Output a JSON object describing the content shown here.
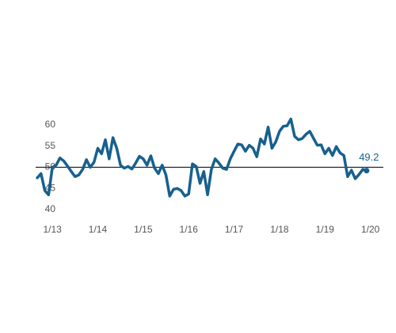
{
  "chart_data": {
    "type": "line",
    "categories": [
      null,
      null,
      null,
      null,
      "1/13",
      null,
      null,
      null,
      null,
      null,
      null,
      null,
      null,
      null,
      null,
      null,
      "1/14",
      null,
      null,
      null,
      null,
      null,
      null,
      null,
      null,
      null,
      null,
      null,
      "1/15",
      null,
      null,
      null,
      null,
      null,
      null,
      null,
      null,
      null,
      null,
      null,
      "1/16",
      null,
      null,
      null,
      null,
      null,
      null,
      null,
      null,
      null,
      null,
      null,
      "1/17",
      null,
      null,
      null,
      null,
      null,
      null,
      null,
      null,
      null,
      null,
      null,
      "1/18",
      null,
      null,
      null,
      null,
      null,
      null,
      null,
      null,
      null,
      null,
      null,
      "1/19",
      null,
      null,
      null,
      null,
      null,
      null,
      null,
      null,
      null,
      null,
      null,
      "1/20"
    ],
    "series": [
      {
        "color": "#17608e",
        "values": [
          47.5,
          48.5,
          44.5,
          43.5,
          50,
          50.5,
          52.2,
          51.5,
          50.3,
          49,
          47.8,
          48.2,
          49.5,
          51.8,
          50,
          51.2,
          54.5,
          53.2,
          56.5,
          52,
          57,
          54.5,
          50.5,
          49.8,
          50.2,
          49.6,
          51,
          52.6,
          52,
          50.5,
          52.7,
          49.8,
          48.5,
          50.5,
          48.2,
          43.2,
          44.8,
          45,
          44.5,
          43.2,
          43.7,
          50.8,
          50.2,
          46.2,
          49,
          43.5,
          49.5,
          52,
          51,
          49.8,
          49.5,
          52,
          53.8,
          55.5,
          55.3,
          53.8,
          55.2,
          54.5,
          52.5,
          56.7,
          55.5,
          59.5,
          54.5,
          56,
          58.5,
          59.7,
          59.8,
          61.4,
          57.3,
          56.5,
          56.8,
          57.8,
          58.5,
          56.8,
          55.2,
          55.3,
          53.2,
          54.5,
          52.8,
          54.9,
          53.4,
          52.8,
          47.8,
          49.3,
          47.3,
          48.3,
          49.5,
          49.2,
          null
        ]
      }
    ],
    "end_label": "49.2",
    "reference_line": 50,
    "ylim": [
      38,
      62
    ],
    "yticks": [
      40,
      45,
      50,
      55,
      60
    ]
  }
}
